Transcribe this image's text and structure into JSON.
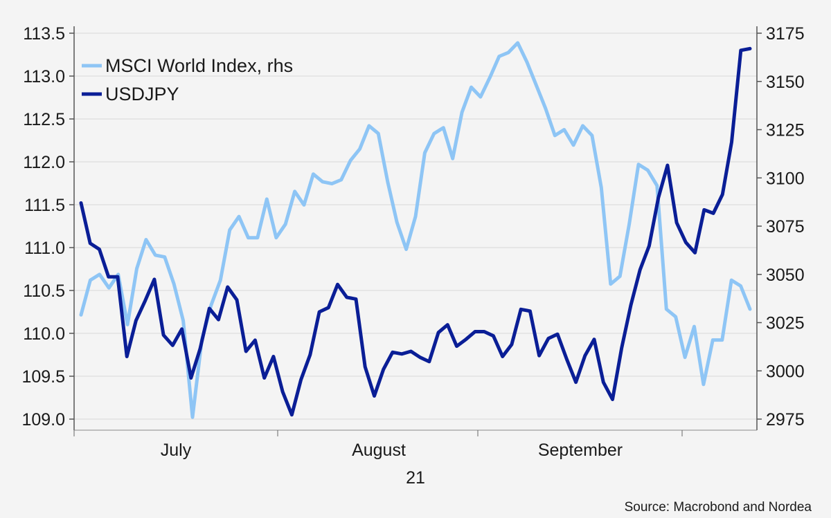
{
  "chart_data": {
    "type": "line",
    "subtitle": "21",
    "source": "Source: Macrobond and Nordea",
    "grid": true,
    "legend_position": "top-left",
    "x_labels": [
      "July",
      "August",
      "September"
    ],
    "left_axis": {
      "ticks": [
        "109.0",
        "109.5",
        "110.0",
        "110.5",
        "111.0",
        "111.5",
        "112.0",
        "112.5",
        "113.0",
        "113.5"
      ],
      "ylim": [
        109.0,
        113.5
      ]
    },
    "right_axis": {
      "ticks": [
        "2975",
        "3000",
        "3025",
        "3050",
        "3075",
        "3100",
        "3125",
        "3150",
        "3175"
      ],
      "ylim": [
        2975,
        3175
      ]
    },
    "series": [
      {
        "name": "MSCI World Index, rhs",
        "axis": "right",
        "color": "#8ec5f5",
        "values": [
          3029,
          3047,
          3050,
          3043,
          3050,
          3024,
          3053,
          3068,
          3060,
          3059,
          3045,
          3026,
          2976,
          3016,
          3034,
          3047,
          3073,
          3080,
          3069,
          3069,
          3089,
          3069,
          3076,
          3093,
          3086,
          3102,
          3098,
          3097,
          3099,
          3109,
          3115,
          3127,
          3123,
          3098,
          3077,
          3063,
          3080,
          3113,
          3123,
          3126,
          3110,
          3134,
          3147,
          3142,
          3152,
          3163,
          3165,
          3170,
          3160,
          3148,
          3136,
          3122,
          3125,
          3117,
          3127,
          3122,
          3095,
          3045,
          3049,
          3076,
          3107,
          3104,
          3096,
          3032,
          3028,
          3007,
          3023,
          2993,
          3016,
          3016,
          3047,
          3044,
          3032
        ]
      },
      {
        "name": "USDJPY",
        "axis": "left",
        "color": "#0a1e96",
        "values": [
          111.52,
          111.05,
          110.98,
          110.66,
          110.66,
          109.73,
          110.15,
          110.38,
          110.63,
          109.98,
          109.86,
          110.05,
          109.48,
          109.82,
          110.29,
          110.16,
          110.54,
          110.39,
          109.79,
          109.92,
          109.48,
          109.73,
          109.32,
          109.05,
          109.46,
          109.75,
          110.25,
          110.3,
          110.57,
          110.42,
          110.4,
          109.61,
          109.27,
          109.58,
          109.78,
          109.76,
          109.79,
          109.72,
          109.67,
          110.01,
          110.1,
          109.85,
          109.93,
          110.02,
          110.02,
          109.97,
          109.73,
          109.87,
          110.28,
          110.26,
          109.74,
          109.94,
          109.99,
          109.7,
          109.43,
          109.74,
          109.93,
          109.43,
          109.23,
          109.83,
          110.33,
          110.74,
          111.02,
          111.58,
          111.96,
          111.29,
          111.06,
          110.94,
          111.44,
          111.4,
          111.62,
          112.23,
          113.3,
          113.32
        ]
      }
    ]
  }
}
